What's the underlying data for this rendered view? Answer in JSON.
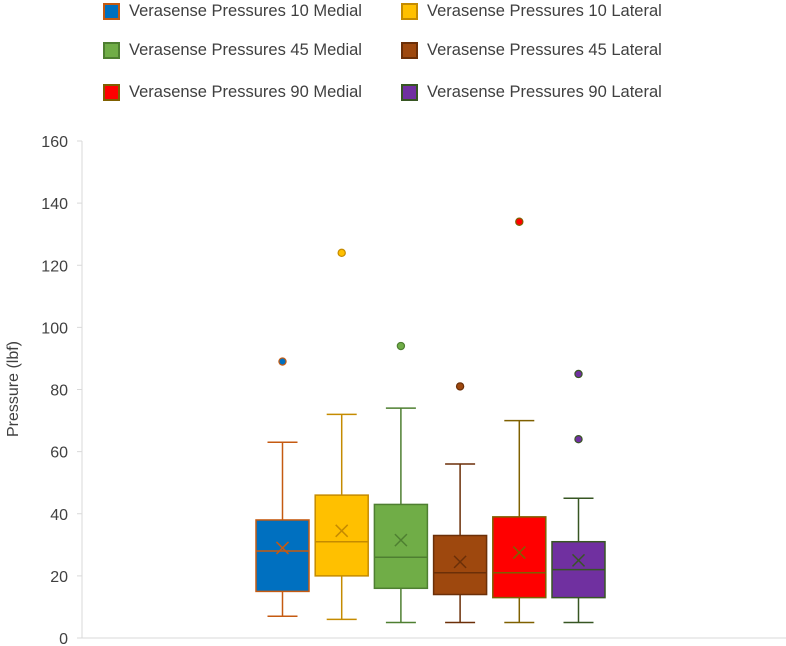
{
  "chart_data": {
    "type": "box",
    "title": "",
    "xlabel": "",
    "ylabel": "Pressure (lbf)",
    "ylim": [
      0,
      160
    ],
    "yticks": [
      0,
      20,
      40,
      60,
      80,
      100,
      120,
      140,
      160
    ],
    "grid": false,
    "legend_position": "top",
    "series": [
      {
        "name": "Verasense Pressures 10 Medial",
        "fill": "#0070C0",
        "stroke": "#C55A11",
        "min": 7,
        "q1": 15,
        "median": 28,
        "q3": 38,
        "max": 63,
        "mean": 29,
        "outliers": [
          89
        ]
      },
      {
        "name": "Verasense Pressures 10 Lateral",
        "fill": "#FFC000",
        "stroke": "#C58B00",
        "min": 6,
        "q1": 20,
        "median": 31,
        "q3": 46,
        "max": 72,
        "mean": 34.5,
        "outliers": [
          124
        ]
      },
      {
        "name": "Verasense Pressures 45 Medial",
        "fill": "#70AD47",
        "stroke": "#4E7F31",
        "min": 5,
        "q1": 16,
        "median": 26,
        "q3": 43,
        "max": 74,
        "mean": 31.5,
        "outliers": [
          94
        ]
      },
      {
        "name": "Verasense Pressures 45 Lateral",
        "fill": "#9E480E",
        "stroke": "#6B2F08",
        "min": 5,
        "q1": 14,
        "median": 21,
        "q3": 33,
        "max": 56,
        "mean": 24.5,
        "outliers": [
          81
        ]
      },
      {
        "name": "Verasense Pressures 90 Medial",
        "fill": "#FF0000",
        "stroke": "#7F6000",
        "min": 5,
        "q1": 13,
        "median": 21,
        "q3": 39,
        "max": 70,
        "mean": 27.5,
        "outliers": [
          134
        ]
      },
      {
        "name": "Verasense Pressures 90 Lateral",
        "fill": "#7030A0",
        "stroke": "#375623",
        "min": 5,
        "q1": 13,
        "median": 22,
        "q3": 31,
        "max": 45,
        "mean": 25,
        "outliers": [
          64,
          85
        ]
      }
    ]
  }
}
